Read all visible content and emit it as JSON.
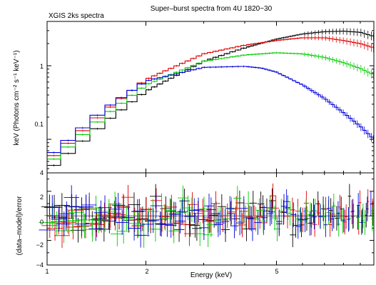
{
  "chart_data": [
    {
      "type": "line",
      "title": "Super–burst spectra from 4U 1820−30",
      "subtitle": "XGIS 2ks spectra",
      "ylabel": "keV (Photons cm⁻² s⁻¹ keV⁻¹)",
      "xlabel": "",
      "xscale": "log",
      "yscale": "log",
      "xlim": [
        1,
        9.9
      ],
      "ylim": [
        0.035,
        4.0
      ],
      "yticks": [
        "0.1",
        "1"
      ],
      "corner_tick": "4",
      "series": [
        {
          "name": "",
          "color": "#000000",
          "x": [
            1.0,
            1.5,
            2.0,
            3.0,
            4.0,
            5.0,
            6.0,
            7.0,
            8.0,
            9.0,
            9.9
          ],
          "y": [
            0.037,
            0.17,
            0.45,
            1.15,
            1.75,
            2.3,
            2.7,
            2.9,
            2.95,
            2.85,
            2.5
          ]
        },
        {
          "name": "",
          "color": "#e00000",
          "x": [
            1.0,
            1.5,
            2.0,
            3.0,
            4.0,
            5.0,
            6.0,
            7.0,
            8.0,
            9.0,
            9.9
          ],
          "y": [
            0.05,
            0.24,
            0.65,
            1.45,
            1.9,
            2.2,
            2.4,
            2.4,
            2.2,
            2.0,
            1.75
          ]
        },
        {
          "name": "",
          "color": "#00cc00",
          "x": [
            1.0,
            1.5,
            2.0,
            3.0,
            4.0,
            5.0,
            6.0,
            7.0,
            8.0,
            9.0,
            9.9
          ],
          "y": [
            0.045,
            0.21,
            0.55,
            1.15,
            1.4,
            1.5,
            1.45,
            1.3,
            1.1,
            0.92,
            0.75
          ]
        },
        {
          "name": "",
          "color": "#0000dd",
          "x": [
            1.0,
            1.5,
            2.0,
            3.0,
            4.0,
            4.5,
            5.0,
            6.0,
            7.0,
            8.0,
            9.0,
            9.9
          ],
          "y": [
            0.055,
            0.26,
            0.62,
            0.95,
            0.98,
            0.93,
            0.82,
            0.55,
            0.36,
            0.23,
            0.15,
            0.1
          ]
        }
      ]
    },
    {
      "type": "scatter",
      "xlabel": "Energy (keV)",
      "ylabel": "(data–model)/error",
      "xscale": "log",
      "xlim": [
        1,
        9.9
      ],
      "ylim": [
        -4,
        3.5
      ],
      "xticks": [
        "1",
        "2",
        "5"
      ],
      "yticks": [
        "−4",
        "−2",
        "0",
        "2"
      ],
      "points_per_series": 70,
      "residual_range": [
        -3,
        3
      ],
      "series_colors": [
        "#000000",
        "#e00000",
        "#00cc00",
        "#0000dd"
      ]
    }
  ]
}
